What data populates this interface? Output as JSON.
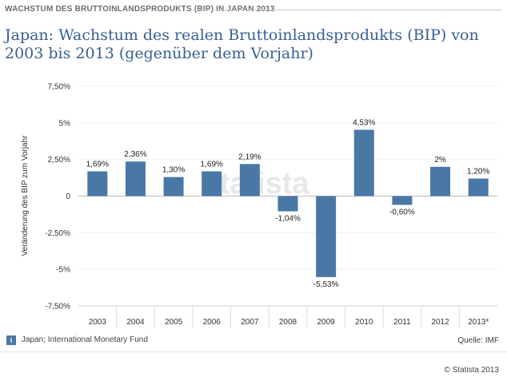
{
  "header": {
    "label": "WACHSTUM DES BRUTTOINLANDSPRODUKTS (BIP) IN JAPAN 2013",
    "title": "Japan: Wachstum des realen Bruttoinlandsprodukts (BIP) von 2003 bis 2013 (gegenüber dem Vorjahr)"
  },
  "chart_data": {
    "type": "bar",
    "title": "Japan: Wachstum des realen Bruttoinlandsprodukts (BIP) von 2003 bis 2013 (gegenüber dem Vorjahr)",
    "xlabel": "",
    "ylabel": "Veränderung des BIP zum Vorjahr",
    "categories": [
      "2003",
      "2004",
      "2005",
      "2006",
      "2007",
      "2008",
      "2009",
      "2010",
      "2011",
      "2012",
      "2013*"
    ],
    "values": [
      1.69,
      2.36,
      1.3,
      1.69,
      2.19,
      -1.04,
      -5.53,
      4.53,
      -0.6,
      2.0,
      1.2
    ],
    "data_labels": [
      "1,69%",
      "2,36%",
      "1,30%",
      "1,69%",
      "2,19%",
      "-1,04%",
      "-5,53%",
      "4,53%",
      "-0,60%",
      "2%",
      "1,20%"
    ],
    "ylim": [
      -7.5,
      7.5
    ],
    "yticks": [
      7.5,
      5,
      2.5,
      0,
      -2.5,
      -5,
      -7.5
    ],
    "ytick_labels": [
      "7,50%",
      "5%",
      "2,50%",
      "0",
      "-2,50%",
      "-5%",
      "-7,50%"
    ],
    "grid": true,
    "bar_color": "#4a78a6",
    "watermark": "statista"
  },
  "footer": {
    "info_icon": "i",
    "source_note": "Japan; International Monetary Fund",
    "source": "Quelle: IMF",
    "copyright": "© Statista 2013"
  }
}
